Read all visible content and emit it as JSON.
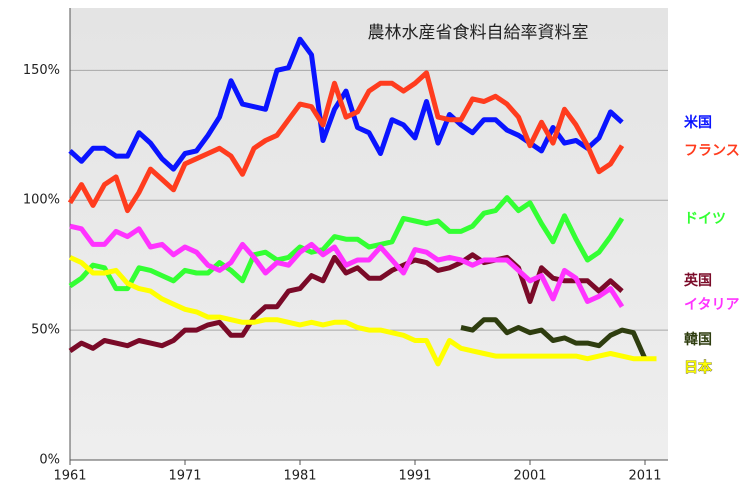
{
  "chart_data": {
    "type": "line",
    "title": "農林水産省食料自給率資料室",
    "x": [
      1961,
      1962,
      1963,
      1964,
      1965,
      1966,
      1967,
      1968,
      1969,
      1970,
      1971,
      1972,
      1973,
      1974,
      1975,
      1976,
      1977,
      1978,
      1979,
      1980,
      1981,
      1982,
      1983,
      1984,
      1985,
      1986,
      1987,
      1988,
      1989,
      1990,
      1991,
      1992,
      1993,
      1994,
      1995,
      1996,
      1997,
      1998,
      1999,
      2000,
      2001,
      2002,
      2003,
      2004,
      2005,
      2006,
      2007,
      2008,
      2009,
      2010,
      2011,
      2012
    ],
    "series": [
      {
        "name": "米国",
        "color": "#0a14ff",
        "values": [
          119,
          115,
          120,
          120,
          117,
          117,
          126,
          122,
          116,
          112,
          118,
          119,
          125,
          132,
          146,
          137,
          136,
          135,
          150,
          151,
          162,
          156,
          123,
          135,
          142,
          128,
          126,
          118,
          131,
          129,
          124,
          138,
          122,
          133,
          129,
          126,
          131,
          131,
          127,
          125,
          122,
          119,
          128,
          122,
          123,
          120,
          124,
          134,
          130,
          null,
          null,
          null
        ]
      },
      {
        "name": "フランス",
        "color": "#ff3c1e",
        "values": [
          99,
          106,
          98,
          106,
          109,
          96,
          103,
          112,
          108,
          104,
          114,
          116,
          118,
          120,
          117,
          110,
          120,
          123,
          125,
          131,
          137,
          136,
          129,
          145,
          132,
          134,
          142,
          145,
          145,
          142,
          145,
          149,
          132,
          131,
          131,
          139,
          138,
          140,
          137,
          132,
          121,
          130,
          122,
          135,
          129,
          121,
          111,
          114,
          121,
          null,
          null,
          null
        ]
      },
      {
        "name": "ドイツ",
        "color": "#33ff33",
        "values": [
          67,
          70,
          75,
          74,
          66,
          66,
          74,
          73,
          71,
          69,
          73,
          72,
          72,
          76,
          73,
          69,
          79,
          80,
          77,
          78,
          82,
          80,
          81,
          86,
          85,
          85,
          82,
          83,
          84,
          93,
          92,
          91,
          92,
          88,
          88,
          90,
          95,
          96,
          101,
          96,
          99,
          91,
          84,
          94,
          85,
          77,
          80,
          86,
          93,
          null,
          null,
          null
        ]
      },
      {
        "name": "英国",
        "color": "#7a0a28",
        "values": [
          42,
          45,
          43,
          46,
          45,
          44,
          46,
          45,
          44,
          46,
          50,
          50,
          52,
          53,
          48,
          48,
          55,
          59,
          59,
          65,
          66,
          71,
          69,
          78,
          72,
          74,
          70,
          70,
          73,
          75,
          77,
          76,
          73,
          74,
          76,
          79,
          76,
          77,
          78,
          74,
          61,
          74,
          70,
          69,
          69,
          69,
          65,
          69,
          65,
          null,
          null,
          null
        ]
      },
      {
        "name": "イタリア",
        "color": "#ff33ff",
        "values": [
          90,
          89,
          83,
          83,
          88,
          86,
          89,
          82,
          83,
          79,
          82,
          80,
          75,
          73,
          76,
          83,
          78,
          72,
          76,
          75,
          80,
          83,
          79,
          82,
          75,
          77,
          77,
          82,
          77,
          72,
          81,
          80,
          77,
          78,
          77,
          75,
          77,
          77,
          77,
          73,
          69,
          71,
          62,
          73,
          70,
          61,
          63,
          66,
          59,
          null,
          null,
          null
        ]
      },
      {
        "name": "韓国",
        "color": "#2e3d0f",
        "values": [
          null,
          null,
          null,
          null,
          null,
          null,
          null,
          null,
          null,
          null,
          null,
          null,
          null,
          null,
          null,
          null,
          null,
          null,
          null,
          null,
          null,
          null,
          null,
          null,
          null,
          null,
          null,
          null,
          null,
          null,
          null,
          null,
          null,
          null,
          51,
          50,
          54,
          54,
          49,
          51,
          49,
          50,
          46,
          47,
          45,
          45,
          44,
          48,
          50,
          49,
          39,
          null
        ]
      },
      {
        "name": "日本",
        "color": "#ffff00",
        "values": [
          78,
          76,
          72,
          72,
          73,
          68,
          66,
          65,
          62,
          60,
          58,
          57,
          55,
          55,
          54,
          53,
          53,
          54,
          54,
          53,
          52,
          53,
          52,
          53,
          53,
          51,
          50,
          50,
          49,
          48,
          46,
          46,
          37,
          46,
          43,
          42,
          41,
          40,
          40,
          40,
          40,
          40,
          40,
          40,
          40,
          39,
          40,
          41,
          40,
          39,
          39,
          39
        ]
      }
    ],
    "xlim": [
      1961,
      2013
    ],
    "ylim": [
      0,
      174
    ],
    "xticks": [
      1961,
      1971,
      1981,
      1991,
      2001,
      2011
    ],
    "yticks": [
      {
        "value": 0,
        "label": "0%"
      },
      {
        "value": 50,
        "label": "50%"
      },
      {
        "value": 100,
        "label": "100%"
      },
      {
        "value": 150,
        "label": "150%"
      }
    ],
    "grid": true
  }
}
